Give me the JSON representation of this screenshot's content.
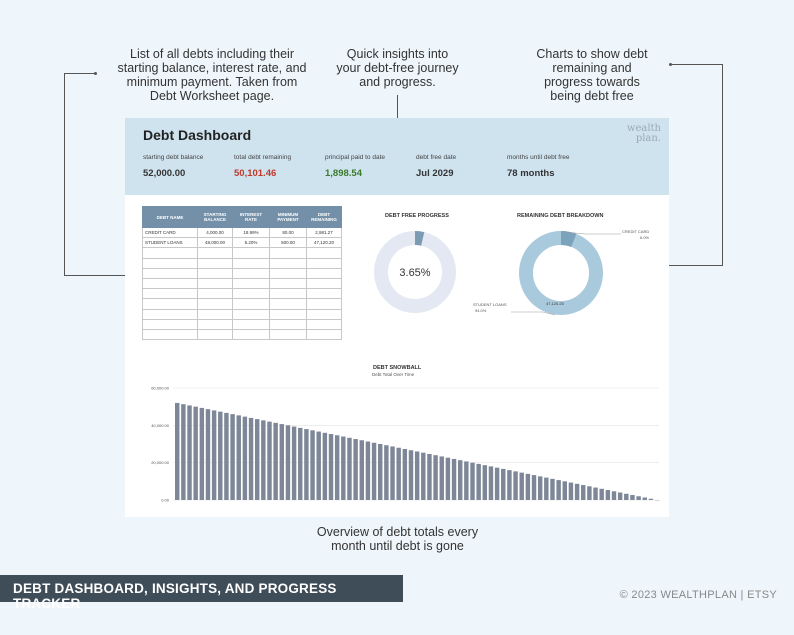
{
  "annotations": {
    "table_note": [
      "List of all debts including their",
      "starting balance, interest rate, and",
      "minimum payment. Taken from",
      "Debt Worksheet page."
    ],
    "insights_note": [
      "Quick insights into",
      "your debt-free journey",
      "and progress."
    ],
    "charts_note": [
      "Charts to show debt",
      "remaining and",
      "progress towards",
      "being debt free"
    ],
    "snowball_note": [
      "Overview of debt totals every",
      "month until debt is gone"
    ]
  },
  "dashboard": {
    "title": "Debt Dashboard",
    "logo": [
      "wealth",
      "plan."
    ],
    "stats": [
      {
        "label": "starting debt balance",
        "value": "52,000.00",
        "color": "#333333"
      },
      {
        "label": "total debt remaining",
        "value": "50,101.46",
        "color": "#c0392b"
      },
      {
        "label": "principal paid to date",
        "value": "1,898.54",
        "color": "#3a7a2a"
      },
      {
        "label": "debt free date",
        "value": "Jul 2029",
        "color": "#333333"
      },
      {
        "label": "months until debt free",
        "value": "78 months",
        "color": "#333333"
      }
    ]
  },
  "debt_table": {
    "headers": [
      "DEBT NAME",
      "STARTING BALANCE",
      "INTEREST RATE",
      "MINIMUM PAYMENT",
      "DEBT REMAINING"
    ],
    "rows": [
      [
        "CREDIT CARD",
        "4,000.00",
        "18.99%",
        "80.00",
        "2,981.27"
      ],
      [
        "STUDENT LOANS",
        "48,000.00",
        "5.20%",
        "500.00",
        "47,120.20"
      ]
    ],
    "empty_rows": 9
  },
  "free_progress": {
    "title": "DEBT FREE PROGRESS",
    "value_label": "3.65%",
    "fraction": 0.0365,
    "colors": {
      "done": "#7c9bb2",
      "remain": "#e3e8f2"
    }
  },
  "breakdown": {
    "title": "REMAINING DEBT BREAKDOWN",
    "slices": [
      {
        "name": "CREDIT CARD",
        "value": 2981.27,
        "pct_label": "6.0%",
        "color": "#7ba3bb"
      },
      {
        "name": "STUDENT LOANS",
        "value": 47120.2,
        "pct_label": "94.0%",
        "value_label": "47,120.20",
        "color": "#a9c9dc"
      }
    ]
  },
  "snowball": {
    "title": "DEBT SNOWBALL",
    "subtitle": "Debt Total Over Time",
    "y_ticks": [
      "60,000.00",
      "40,000.00",
      "20,000.00",
      "0.00"
    ],
    "bar_color": "#7d8797"
  },
  "chart_data": {
    "type": "bar",
    "title": "DEBT SNOWBALL",
    "subtitle": "Debt Total Over Time",
    "ylim": [
      0,
      60000
    ],
    "start": 52000,
    "end": 0,
    "num_bars": 79
  },
  "footer": {
    "banner": "DEBT DASHBOARD, INSIGHTS, AND PROGRESS TRACKER",
    "copyright": "© 2023 WEALTHPLAN | ETSY"
  }
}
